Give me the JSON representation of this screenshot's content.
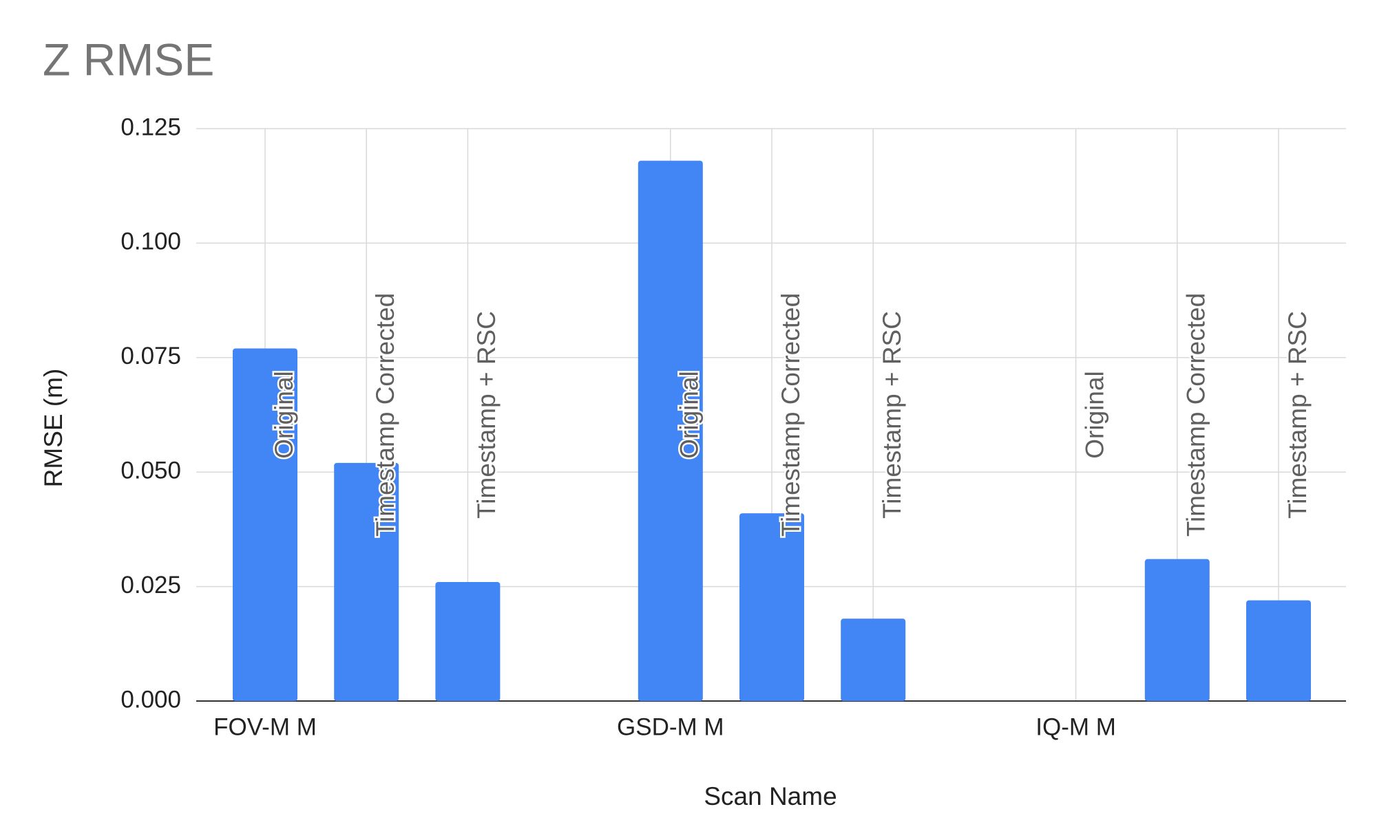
{
  "chart_data": {
    "type": "bar",
    "title": "Z RMSE",
    "y_label": "RMSE (m)",
    "x_label": "Scan Name",
    "categories": [
      "FOV-M M",
      null,
      null,
      null,
      "GSD-M M",
      null,
      null,
      null,
      "IQ-M M",
      null,
      null
    ],
    "values": [
      0.077,
      0.052,
      0.026,
      null,
      0.118,
      0.041,
      0.018,
      null,
      null,
      0.031,
      0.022
    ],
    "bar_labels": [
      "Original",
      "Timestamp Corrected",
      "Timestamp + RSC",
      null,
      "Original",
      "Timestamp Corrected",
      "Timestamp + RSC",
      null,
      "Original",
      "Timestamp Corrected",
      "Timestamp + RSC"
    ],
    "color": "#4285f4",
    "ylim": [
      0,
      0.125
    ],
    "yticks": [
      {
        "value": 0,
        "label": "0.000"
      },
      {
        "value": 0.025,
        "label": "0.025"
      },
      {
        "value": 0.05,
        "label": "0.050"
      },
      {
        "value": 0.075,
        "label": "0.075"
      },
      {
        "value": 0.1,
        "label": "0.100"
      },
      {
        "value": 0.125,
        "label": "0.125"
      }
    ],
    "grid": true
  }
}
